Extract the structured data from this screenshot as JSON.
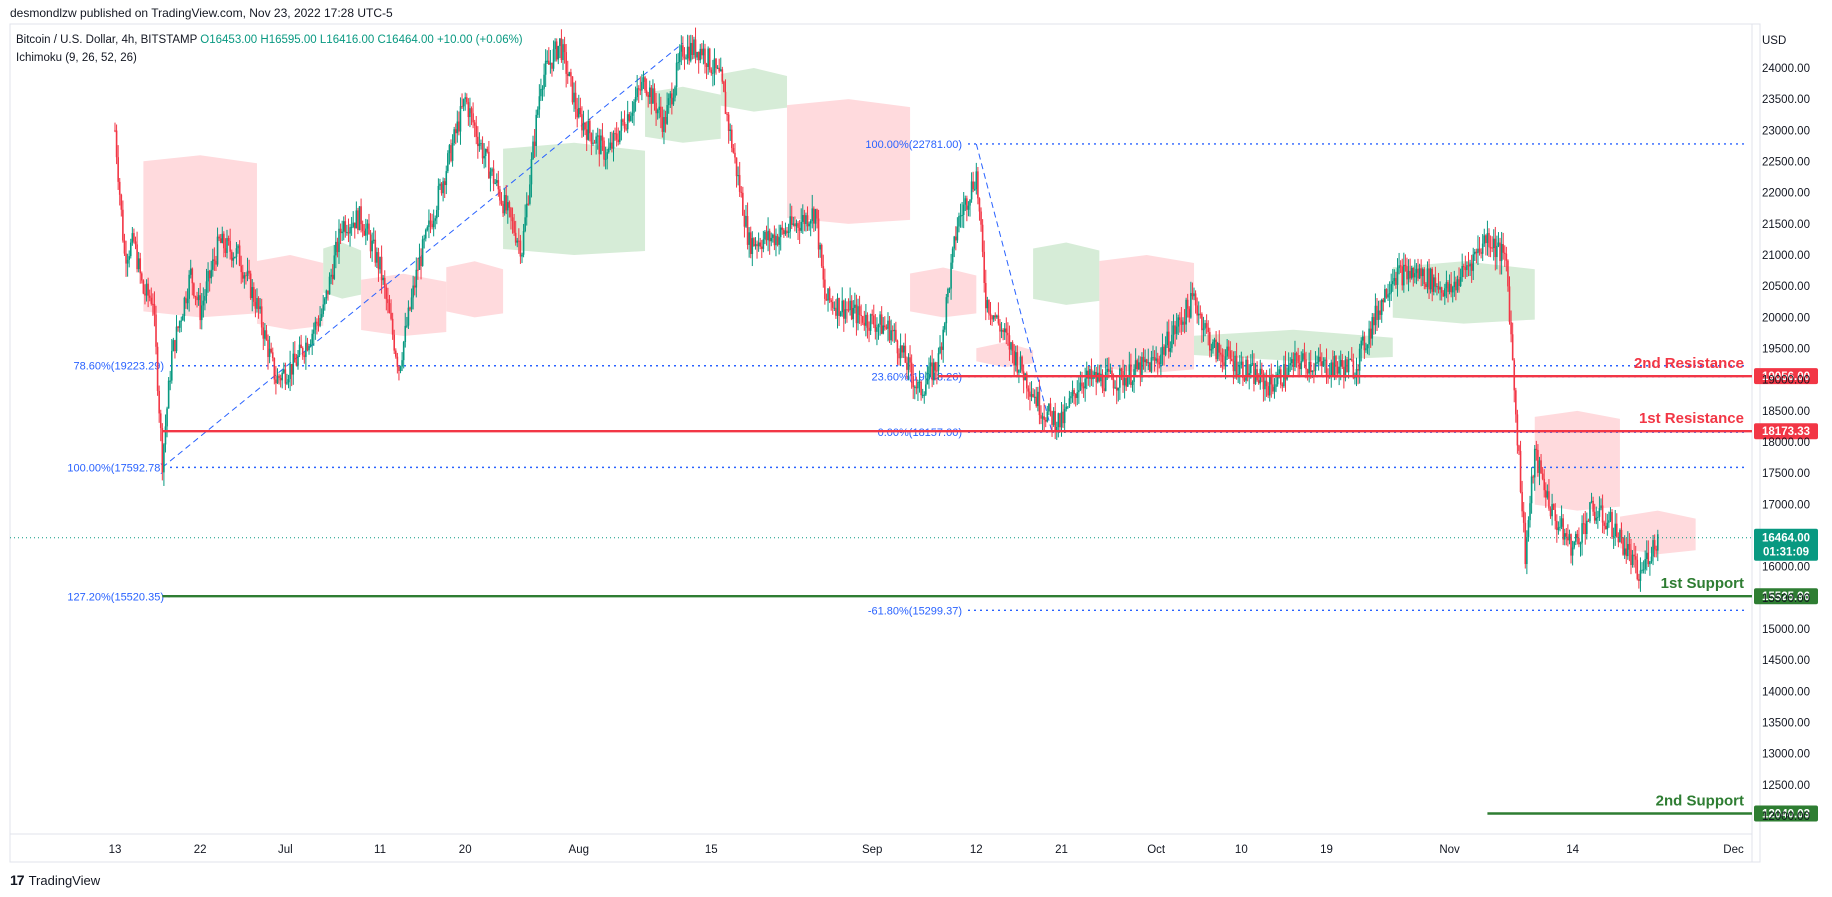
{
  "header": {
    "publisher": "desmondlzw published on TradingView.com, Nov 23, 2022 17:28 UTC-5",
    "symbol": "Bitcoin / U.S. Dollar, 4h, BITSTAMP",
    "ohlc": {
      "o": "O16453.00",
      "h": "H16595.00",
      "l": "L16416.00",
      "c": "C16464.00",
      "chg": "+10.00 (+0.06%)"
    },
    "indicator": "Ichimoku (9, 26, 52, 26)"
  },
  "footer": {
    "brand": "TradingView"
  },
  "colors": {
    "up": "#089981",
    "down": "#f23645",
    "cloud_up": "#c8e6c9",
    "cloud_down": "#ffcdd2",
    "resistance": "#f23645",
    "support": "#2e7d32",
    "fib": "#2962ff"
  },
  "chart_data": {
    "type": "candlestick",
    "symbol": "BTCUSD",
    "timeframe": "4h",
    "currency": "USD",
    "ylim": [
      12000,
      24500
    ],
    "y_ticks": [
      "24000.00",
      "23500.00",
      "23000.00",
      "22500.00",
      "22000.00",
      "21500.00",
      "21000.00",
      "20500.00",
      "20000.00",
      "19500.00",
      "19000.00",
      "18500.00",
      "18000.00",
      "17500.00",
      "17000.00",
      "16500.00",
      "16000.00",
      "15500.00",
      "15000.00",
      "14500.00",
      "14000.00",
      "13500.00",
      "13000.00",
      "12500.00",
      "12000.00"
    ],
    "x_ticks": [
      "13",
      "22",
      "Jul",
      "11",
      "20",
      "Aug",
      "15",
      "Sep",
      "12",
      "21",
      "Oct",
      "10",
      "19",
      "Nov",
      "14",
      "Dec"
    ],
    "x_tick_dates": [
      "2022-06-13",
      "2022-06-22",
      "2022-07-01",
      "2022-07-11",
      "2022-07-20",
      "2022-08-01",
      "2022-08-15",
      "2022-09-01",
      "2022-09-12",
      "2022-09-21",
      "2022-10-01",
      "2022-10-10",
      "2022-10-19",
      "2022-11-01",
      "2022-11-14",
      "2022-12-01"
    ],
    "price_path": [
      [
        "2022-06-13",
        23000
      ],
      [
        "2022-06-14",
        21000
      ],
      [
        "2022-06-15",
        21200
      ],
      [
        "2022-06-16",
        20400
      ],
      [
        "2022-06-17",
        20300
      ],
      [
        "2022-06-18",
        17700
      ],
      [
        "2022-06-19",
        19400
      ],
      [
        "2022-06-21",
        20700
      ],
      [
        "2022-06-22",
        20100
      ],
      [
        "2022-06-24",
        21200
      ],
      [
        "2022-06-26",
        21000
      ],
      [
        "2022-06-28",
        20200
      ],
      [
        "2022-06-30",
        19000
      ],
      [
        "2022-07-02",
        19250
      ],
      [
        "2022-07-05",
        20100
      ],
      [
        "2022-07-07",
        21500
      ],
      [
        "2022-07-09",
        21600
      ],
      [
        "2022-07-11",
        20800
      ],
      [
        "2022-07-13",
        19200
      ],
      [
        "2022-07-15",
        20800
      ],
      [
        "2022-07-18",
        22400
      ],
      [
        "2022-07-20",
        23500
      ],
      [
        "2022-07-22",
        22600
      ],
      [
        "2022-07-26",
        21100
      ],
      [
        "2022-07-28",
        23800
      ],
      [
        "2022-07-30",
        24400
      ],
      [
        "2022-08-01",
        23200
      ],
      [
        "2022-08-04",
        22600
      ],
      [
        "2022-08-08",
        23800
      ],
      [
        "2022-08-10",
        23100
      ],
      [
        "2022-08-12",
        24300
      ],
      [
        "2022-08-14",
        24300
      ],
      [
        "2022-08-16",
        23800
      ],
      [
        "2022-08-19",
        21200
      ],
      [
        "2022-08-22",
        21300
      ],
      [
        "2022-08-26",
        21700
      ],
      [
        "2022-08-27",
        20300
      ],
      [
        "2022-08-31",
        20000
      ],
      [
        "2022-09-03",
        19800
      ],
      [
        "2022-09-06",
        18800
      ],
      [
        "2022-09-08",
        19300
      ],
      [
        "2022-09-10",
        21500
      ],
      [
        "2022-09-12",
        22300
      ],
      [
        "2022-09-13",
        20300
      ],
      [
        "2022-09-15",
        19700
      ],
      [
        "2022-09-19",
        18500
      ],
      [
        "2022-09-21",
        18300
      ],
      [
        "2022-09-23",
        19000
      ],
      [
        "2022-09-27",
        19000
      ],
      [
        "2022-10-01",
        19300
      ],
      [
        "2022-10-05",
        20300
      ],
      [
        "2022-10-07",
        19500
      ],
      [
        "2022-10-10",
        19200
      ],
      [
        "2022-10-13",
        18900
      ],
      [
        "2022-10-16",
        19300
      ],
      [
        "2022-10-19",
        19200
      ],
      [
        "2022-10-22",
        19200
      ],
      [
        "2022-10-26",
        20700
      ],
      [
        "2022-10-29",
        20700
      ],
      [
        "2022-11-01",
        20400
      ],
      [
        "2022-11-05",
        21300
      ],
      [
        "2022-11-07",
        20900
      ],
      [
        "2022-11-08",
        18500
      ],
      [
        "2022-11-09",
        16200
      ],
      [
        "2022-11-10",
        17800
      ],
      [
        "2022-11-12",
        16800
      ],
      [
        "2022-11-14",
        16300
      ],
      [
        "2022-11-16",
        16900
      ],
      [
        "2022-11-18",
        16700
      ],
      [
        "2022-11-20",
        16200
      ],
      [
        "2022-11-21",
        15800
      ],
      [
        "2022-11-22",
        16200
      ],
      [
        "2022-11-23",
        16464
      ]
    ],
    "cloud_segments": [
      {
        "start": "2022-06-16",
        "end": "2022-06-28",
        "upper": 22600,
        "lower": 20000,
        "bias": "bearish"
      },
      {
        "start": "2022-06-28",
        "end": "2022-07-05",
        "upper": 21000,
        "lower": 19800,
        "bias": "bearish"
      },
      {
        "start": "2022-07-05",
        "end": "2022-07-09",
        "upper": 21200,
        "lower": 20300,
        "bias": "bullish"
      },
      {
        "start": "2022-07-09",
        "end": "2022-07-18",
        "upper": 20700,
        "lower": 19700,
        "bias": "bearish"
      },
      {
        "start": "2022-07-18",
        "end": "2022-07-24",
        "upper": 20900,
        "lower": 20000,
        "bias": "bearish"
      },
      {
        "start": "2022-07-24",
        "end": "2022-08-08",
        "upper": 22800,
        "lower": 21000,
        "bias": "bullish"
      },
      {
        "start": "2022-08-08",
        "end": "2022-08-16",
        "upper": 23700,
        "lower": 22800,
        "bias": "bullish"
      },
      {
        "start": "2022-08-16",
        "end": "2022-08-23",
        "upper": 24000,
        "lower": 23300,
        "bias": "bullish"
      },
      {
        "start": "2022-08-23",
        "end": "2022-09-05",
        "upper": 23500,
        "lower": 21500,
        "bias": "bearish"
      },
      {
        "start": "2022-09-05",
        "end": "2022-09-12",
        "upper": 20800,
        "lower": 20000,
        "bias": "bearish"
      },
      {
        "start": "2022-09-12",
        "end": "2022-09-18",
        "upper": 19600,
        "lower": 19200,
        "bias": "bearish"
      },
      {
        "start": "2022-09-18",
        "end": "2022-09-25",
        "upper": 21200,
        "lower": 20200,
        "bias": "bullish"
      },
      {
        "start": "2022-09-25",
        "end": "2022-10-05",
        "upper": 21000,
        "lower": 19100,
        "bias": "bearish"
      },
      {
        "start": "2022-10-05",
        "end": "2022-10-26",
        "upper": 19800,
        "lower": 19300,
        "bias": "bullish"
      },
      {
        "start": "2022-10-26",
        "end": "2022-11-10",
        "upper": 20900,
        "lower": 19900,
        "bias": "bullish"
      },
      {
        "start": "2022-11-10",
        "end": "2022-11-19",
        "upper": 18500,
        "lower": 16900,
        "bias": "bearish"
      },
      {
        "start": "2022-11-19",
        "end": "2022-11-27",
        "upper": 16900,
        "lower": 16200,
        "bias": "bearish"
      }
    ],
    "fib_retracements": [
      {
        "label": "78.60%(19223.29)",
        "price": 19223.29,
        "start": "2022-06-13",
        "end": "2022-12-05"
      },
      {
        "label": "100.00%(17592.78)",
        "price": 17592.78,
        "start": "2022-06-13",
        "end": "2022-12-05"
      },
      {
        "label": "127.20%(15520.35)",
        "price": 15520.35,
        "start": "2022-06-13",
        "end": "2022-06-18"
      },
      {
        "label": "100.00%(22781.00)",
        "price": 22781.0,
        "start": "2022-09-12",
        "end": "2022-12-05"
      },
      {
        "label": "23.60%(19048.26)",
        "price": 19048.26,
        "start": "2022-09-12",
        "end": "2022-12-05"
      },
      {
        "label": "0.00%(18157.00)",
        "price": 18157.0,
        "start": "2022-09-12",
        "end": "2022-12-05"
      },
      {
        "label": "-61.80%(15299.37)",
        "price": 15299.37,
        "start": "2022-09-12",
        "end": "2022-12-05"
      }
    ],
    "fib_trend_lines": [
      {
        "from": [
          "2022-06-18",
          17592.78
        ],
        "to": [
          "2022-08-12",
          24400
        ]
      },
      {
        "from": [
          "2022-09-12",
          22781
        ],
        "to": [
          "2022-09-20",
          18157
        ]
      }
    ],
    "levels": [
      {
        "label": "2nd Resistance",
        "price": 19056.0,
        "price_label": "19056.00",
        "type": "resistance",
        "start": "2022-09-08"
      },
      {
        "label": "1st Resistance",
        "price": 18173.33,
        "price_label": "18173.33",
        "type": "resistance",
        "start": "2022-06-18"
      },
      {
        "label": "1st Support",
        "price": 15525.96,
        "price_label": "15525.96",
        "type": "support",
        "start": "2022-06-18"
      },
      {
        "label": "2nd Support",
        "price": 12040.03,
        "price_label": "12040.03",
        "type": "support",
        "start": "2022-11-05"
      }
    ],
    "current_price": {
      "price": 16464.0,
      "label": "16464.00",
      "countdown": "01:31:09"
    }
  }
}
